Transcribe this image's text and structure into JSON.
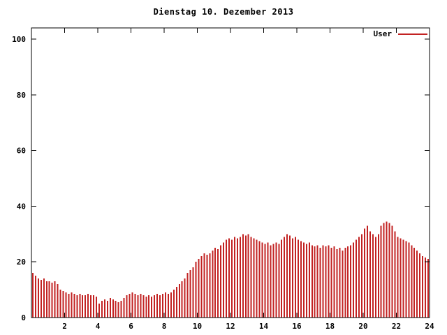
{
  "title": "Dienstag 10. Dezember 2013",
  "colors": {
    "bar": "#c22222",
    "axis": "#000000",
    "text": "#000000",
    "background": "#ffffff"
  },
  "chart_data": {
    "type": "bar",
    "title": "Dienstag 10. Dezember 2013",
    "xlabel": "",
    "ylabel": "",
    "xlim": [
      0,
      24
    ],
    "ylim": [
      0,
      104
    ],
    "xticks": [
      2,
      4,
      6,
      8,
      10,
      12,
      14,
      16,
      18,
      20,
      22,
      24
    ],
    "yticks": [
      0,
      20,
      40,
      60,
      80,
      100
    ],
    "grid": false,
    "legend_position": "top-right",
    "x_unit": "hour",
    "x_start": 0,
    "x_step": 0.1666667,
    "series": [
      {
        "name": "User",
        "color": "#c22222",
        "values": [
          16,
          15,
          14,
          13.5,
          14,
          13,
          13,
          12.5,
          13,
          12,
          10,
          9.5,
          9,
          8.5,
          9,
          8.5,
          8,
          8.5,
          8,
          8,
          8.5,
          8,
          8,
          7.5,
          5,
          6,
          6.5,
          6,
          7,
          6.5,
          6,
          5.5,
          6,
          7,
          8,
          8.5,
          9,
          8.5,
          8,
          8.5,
          8,
          7.5,
          8,
          7.5,
          8,
          8.5,
          8,
          8.5,
          9,
          8.5,
          9,
          10,
          11,
          12,
          13,
          14,
          16,
          17,
          18,
          20,
          21,
          22,
          23,
          22.5,
          23,
          24,
          25,
          24.5,
          26,
          27,
          28,
          28.5,
          28,
          29,
          28.5,
          29,
          30,
          29.5,
          30,
          29,
          28.5,
          28,
          27.5,
          27,
          26.5,
          27,
          26,
          26.5,
          27,
          26.5,
          28,
          29,
          30,
          29.5,
          28.5,
          29,
          28,
          27.5,
          27,
          26.5,
          27,
          26,
          25.5,
          26,
          25,
          26,
          25.5,
          26,
          25,
          25.5,
          24.5,
          25,
          24,
          25,
          25.5,
          26,
          27,
          28,
          29,
          30,
          32,
          33,
          31,
          30,
          29,
          30,
          33,
          34,
          34.5,
          34,
          33,
          31,
          29,
          28.5,
          28,
          27.5,
          27,
          26,
          25,
          24,
          23,
          22,
          21.5,
          21
        ]
      }
    ]
  }
}
